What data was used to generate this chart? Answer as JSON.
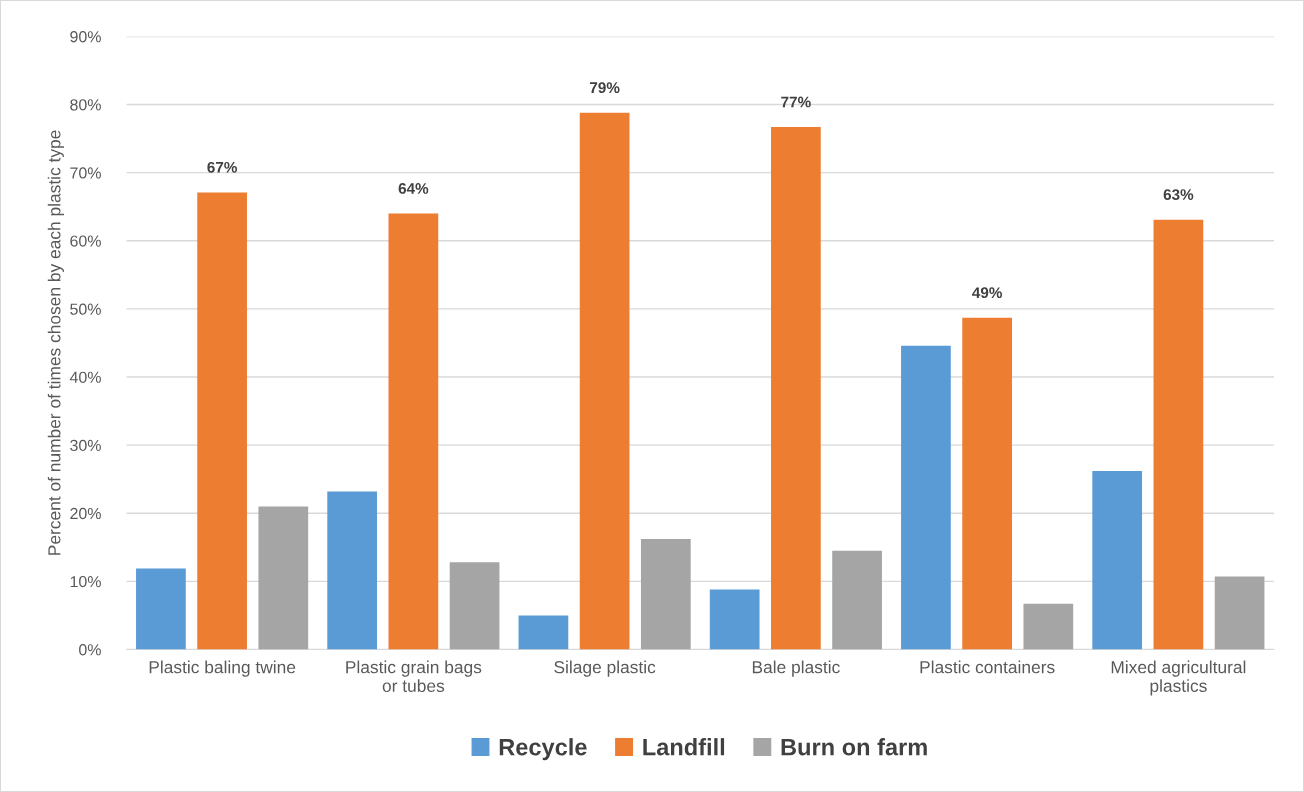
{
  "chart_data": {
    "type": "bar",
    "ylabel": "Percent of number of times chosen by each plastic type",
    "categories": [
      "Plastic baling twine",
      "Plastic grain bags or tubes",
      "Silage plastic",
      "Bale plastic",
      "Plastic containers",
      "Mixed agricultural plastics"
    ],
    "series": [
      {
        "name": "Recycle",
        "color": "#5b9bd5",
        "values": [
          11.9,
          23.2,
          5.0,
          8.8,
          44.6,
          26.2
        ]
      },
      {
        "name": "Landfill",
        "color": "#ed7d31",
        "values": [
          67.1,
          64.0,
          78.8,
          76.7,
          48.7,
          63.1
        ],
        "value_labels": [
          "67%",
          "64%",
          "79%",
          "77%",
          "49%",
          "63%"
        ]
      },
      {
        "name": "Burn on farm",
        "color": "#a5a5a5",
        "values": [
          21.0,
          12.8,
          16.2,
          14.5,
          6.7,
          10.7
        ]
      }
    ],
    "ylim": [
      0,
      90
    ],
    "yticks": [
      {
        "value": 0,
        "label": "0%"
      },
      {
        "value": 10,
        "label": "10%"
      },
      {
        "value": 20,
        "label": "20%"
      },
      {
        "value": 30,
        "label": "30%"
      },
      {
        "value": 40,
        "label": "40%"
      },
      {
        "value": 50,
        "label": "50%"
      },
      {
        "value": 60,
        "label": "60%"
      },
      {
        "value": 70,
        "label": "70%"
      },
      {
        "value": 80,
        "label": "80%"
      },
      {
        "value": 90,
        "label": "90%"
      }
    ],
    "grid": "y",
    "legend": "bottom"
  }
}
